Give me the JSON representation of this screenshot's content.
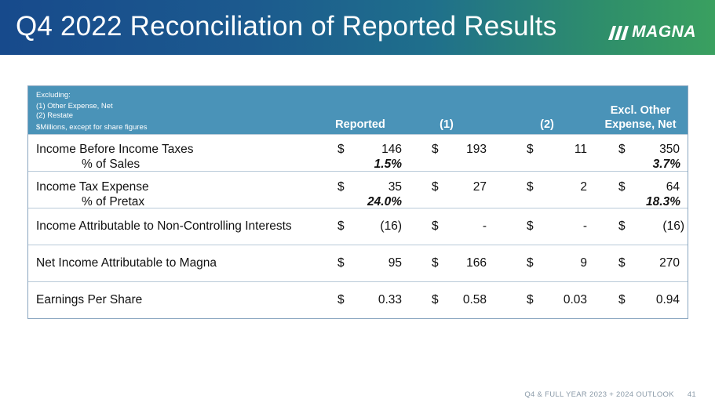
{
  "header": {
    "title": "Q4 2022 Reconciliation of Reported Results",
    "logo_text": "MAGNA"
  },
  "table": {
    "notes": [
      "Excluding:",
      "(1) Other Expense, Net",
      "(2) Restate",
      "$Millions, except for share figures"
    ],
    "columns": [
      "Reported",
      "(1)",
      "(2)",
      "Excl. Other",
      "Expense, Net"
    ],
    "currency_symbol": "$",
    "rows": [
      {
        "label": "Income Before Income Taxes",
        "values": [
          "146",
          "193",
          "11",
          "350"
        ],
        "sub_label": "% of Sales",
        "sub_reported": "1.5%",
        "sub_excl": "3.7%"
      },
      {
        "label": "Income Tax Expense",
        "values": [
          "35",
          "27",
          "2",
          "64"
        ],
        "sub_label": "% of Pretax",
        "sub_reported": "24.0%",
        "sub_excl": "18.3%"
      },
      {
        "label": "Income Attributable to Non-Controlling Interests",
        "values": [
          "(16)",
          "-",
          "-",
          "(16)"
        ]
      },
      {
        "label": "Net Income Attributable to Magna",
        "values": [
          "95",
          "166",
          "9",
          "270"
        ]
      },
      {
        "label": "Earnings Per Share",
        "values": [
          "0.33",
          "0.58",
          "0.03",
          "0.94"
        ]
      }
    ]
  },
  "footer": {
    "text": "Q4 & FULL YEAR 2023 + 2024 OUTLOOK",
    "page": "41"
  },
  "colors": {
    "header_start": "#174a8c",
    "header_end": "#3aa060",
    "table_header": "#4a93b8"
  }
}
